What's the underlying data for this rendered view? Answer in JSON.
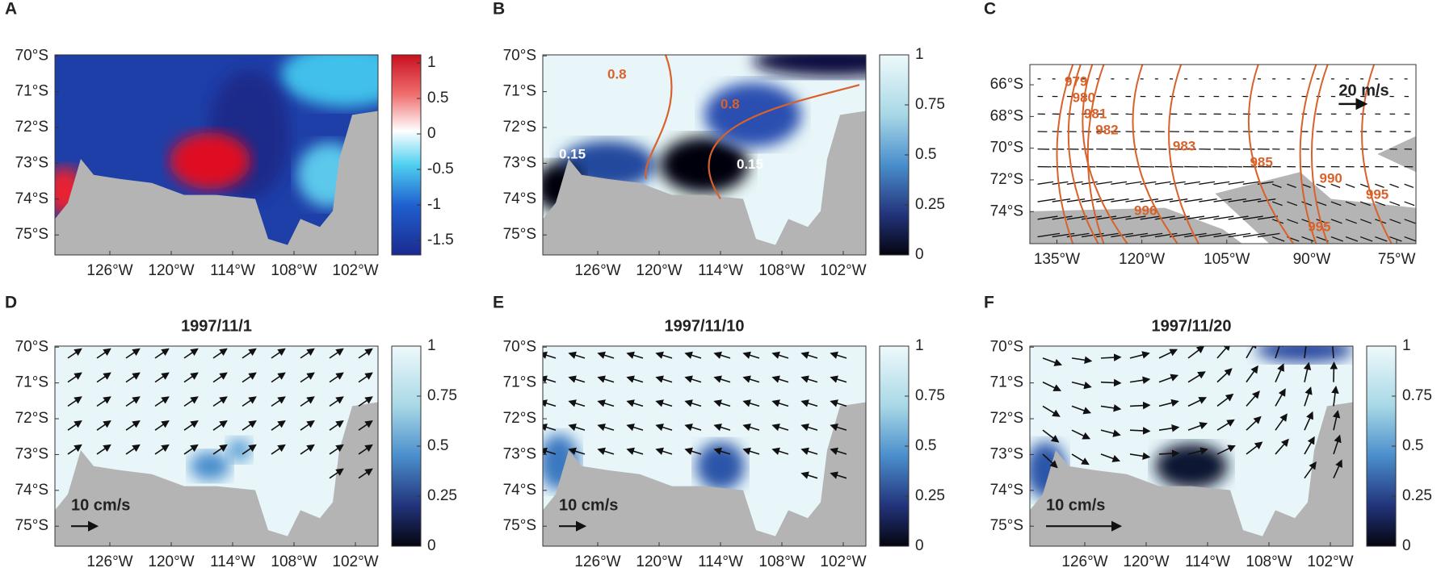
{
  "panels": [
    {
      "letter": "A"
    },
    {
      "letter": "B"
    },
    {
      "letter": "C"
    },
    {
      "letter": "D",
      "title": "1997/11/1"
    },
    {
      "letter": "E",
      "title": "1997/11/10"
    },
    {
      "letter": "F",
      "title": "1997/11/20"
    }
  ],
  "lat_labels": [
    "70°S",
    "71°S",
    "72°S",
    "73°S",
    "74°S",
    "75°S"
  ],
  "lon_labels": [
    "126°W",
    "120°W",
    "114°W",
    "108°W",
    "102°W"
  ],
  "anomaly_colorbar": [
    "1",
    "0.5",
    "0",
    "-0.5",
    "-1",
    "-1.5"
  ],
  "ice_colorbar": [
    "1",
    "0.75",
    "0.5",
    "0.25",
    "0"
  ],
  "b_contours": [
    "0.15",
    "0.8",
    "0.8",
    "0.15"
  ],
  "c": {
    "lat_labels": [
      "66°S",
      "68°S",
      "70°S",
      "72°S",
      "74°S"
    ],
    "lon_labels": [
      "135°W",
      "120°W",
      "105°W",
      "90°W",
      "75°W"
    ],
    "contours": [
      "979",
      "980",
      "981",
      "982",
      "983",
      "985",
      "990",
      "995",
      "996",
      "995"
    ],
    "scale": "20 m/s"
  },
  "current_scale": "10 cm/s"
}
